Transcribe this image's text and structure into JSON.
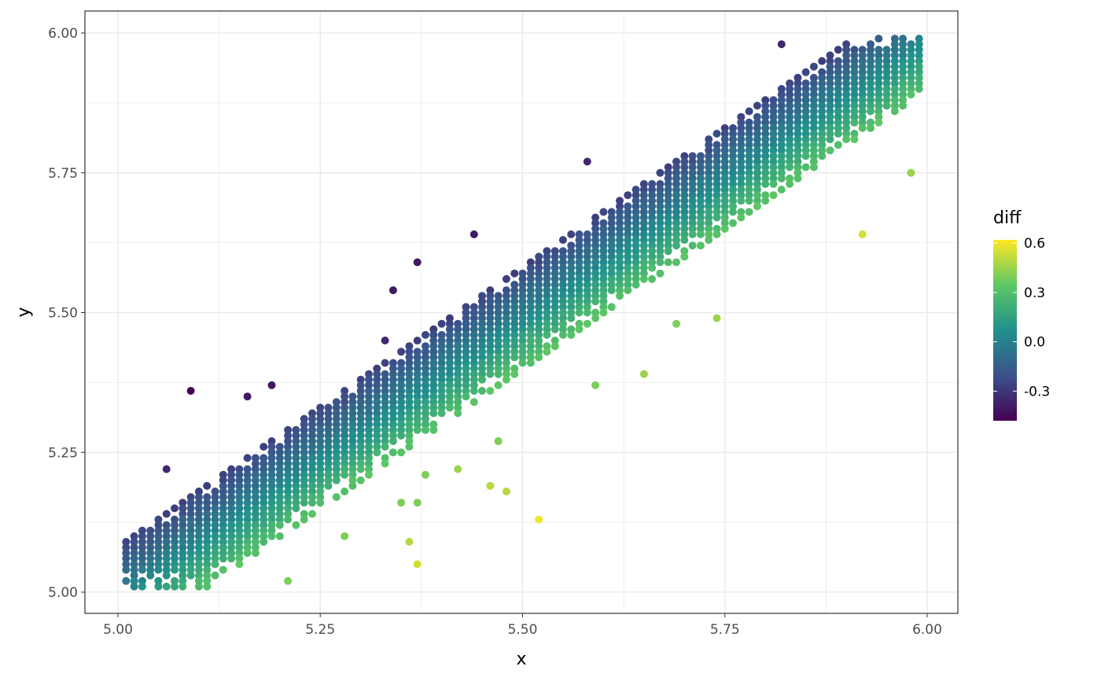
{
  "chart_data": {
    "type": "scatter",
    "xlabel": "x",
    "ylabel": "y",
    "xlim": [
      4.96,
      6.04
    ],
    "ylim": [
      4.96,
      6.04
    ],
    "x_ticks": [
      "5.00",
      "5.25",
      "5.50",
      "5.75",
      "6.00"
    ],
    "y_ticks": [
      "5.00",
      "5.25",
      "5.50",
      "5.75",
      "6.00"
    ],
    "grid": true,
    "color_legend": {
      "title": "diff",
      "ticks": [
        "0.6",
        "0.3",
        "0.0",
        "-0.3"
      ],
      "range": [
        -0.48,
        0.62
      ],
      "palette": [
        "#440154",
        "#3b528b",
        "#21908c",
        "#5dc863",
        "#fde725"
      ],
      "placement": "right"
    },
    "band": {
      "x_range": [
        5.01,
        5.99
      ],
      "step": 0.01,
      "y_offset_range": [
        -0.1,
        0.08
      ],
      "y_clip": [
        5.01,
        5.99
      ],
      "diff_per_unit_below_diagonal": 3.2
    },
    "outliers": [
      [
        5.09,
        5.36,
        -0.5
      ],
      [
        5.37,
        5.05,
        0.55
      ],
      [
        5.52,
        5.13,
        0.6
      ],
      [
        5.92,
        5.64,
        0.55
      ],
      [
        5.46,
        5.19,
        0.5
      ],
      [
        5.48,
        5.18,
        0.5
      ],
      [
        5.36,
        5.09,
        0.5
      ],
      [
        5.42,
        5.22,
        0.45
      ],
      [
        5.65,
        5.39,
        0.45
      ],
      [
        5.74,
        5.49,
        0.45
      ],
      [
        5.98,
        5.75,
        0.45
      ],
      [
        5.21,
        5.02,
        0.4
      ],
      [
        5.28,
        5.1,
        0.4
      ],
      [
        5.34,
        5.54,
        -0.4
      ],
      [
        5.37,
        5.59,
        -0.4
      ],
      [
        5.44,
        5.64,
        -0.4
      ],
      [
        5.16,
        5.35,
        -0.4
      ],
      [
        5.19,
        5.37,
        -0.4
      ],
      [
        5.06,
        5.22,
        -0.35
      ],
      [
        5.82,
        5.98,
        -0.35
      ],
      [
        5.58,
        5.77,
        -0.35
      ],
      [
        5.33,
        5.45,
        -0.35
      ],
      [
        5.35,
        5.16,
        0.4
      ],
      [
        5.37,
        5.16,
        0.4
      ],
      [
        5.38,
        5.21,
        0.4
      ],
      [
        5.59,
        5.37,
        0.4
      ],
      [
        5.69,
        5.48,
        0.4
      ],
      [
        5.47,
        5.27,
        0.4
      ]
    ]
  }
}
